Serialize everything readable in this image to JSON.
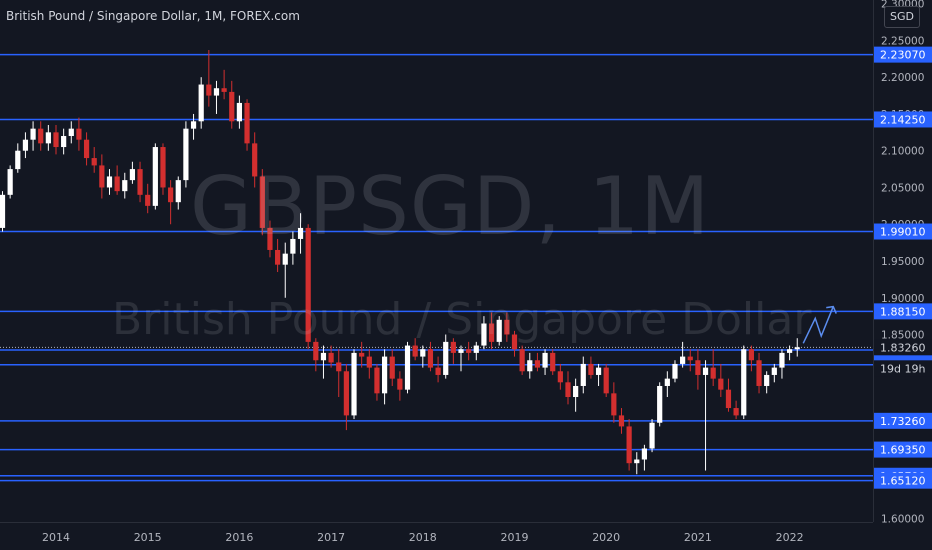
{
  "header": {
    "title": "British Pound / Singapore Dollar, 1M, FOREX.com",
    "currency_button": "SGD"
  },
  "watermark": {
    "symbol": "GBPSGD, 1M",
    "name": "British Pound / Singapore Dollar"
  },
  "colors": {
    "background": "#131722",
    "up_candle": "#ffffff",
    "down_candle": "#d32f2f",
    "level_line": "#2962ff",
    "axis_text": "#b2b5be"
  },
  "chart_data": {
    "type": "candlestick",
    "title": "British Pound / Singapore Dollar, 1M, FOREX.com",
    "ylim": [
      1.595,
      2.305
    ],
    "y_ticks": [
      {
        "label": "2.30000",
        "value": 2.3
      },
      {
        "label": "2.25000",
        "value": 2.25
      },
      {
        "label": "2.20000",
        "value": 2.2
      },
      {
        "label": "2.15000",
        "value": 2.15
      },
      {
        "label": "2.10000",
        "value": 2.1
      },
      {
        "label": "2.05000",
        "value": 2.05
      },
      {
        "label": "2.00000",
        "value": 2.0
      },
      {
        "label": "1.95000",
        "value": 1.95
      },
      {
        "label": "1.90000",
        "value": 1.9
      },
      {
        "label": "1.85000",
        "value": 1.85
      },
      {
        "label": "1.60000",
        "value": 1.6
      }
    ],
    "x_ticks": [
      {
        "label": "2014",
        "value": 2014
      },
      {
        "label": "2015",
        "value": 2015
      },
      {
        "label": "2016",
        "value": 2016
      },
      {
        "label": "2017",
        "value": 2017
      },
      {
        "label": "2018",
        "value": 2018
      },
      {
        "label": "2019",
        "value": 2019
      },
      {
        "label": "2020",
        "value": 2020
      },
      {
        "label": "2021",
        "value": 2021
      },
      {
        "label": "2022",
        "value": 2022
      }
    ],
    "levels": [
      {
        "label": "2.23070",
        "value": 2.2307
      },
      {
        "label": "2.14250",
        "value": 2.1425
      },
      {
        "label": "1.99010",
        "value": 1.9901
      },
      {
        "label": "1.88150",
        "value": 1.8815
      },
      {
        "label": "1.82900",
        "value": 1.829
      },
      {
        "label": "1.80890",
        "value": 1.8089
      },
      {
        "label": "1.73260",
        "value": 1.7326
      },
      {
        "label": "1.69350",
        "value": 1.6935
      },
      {
        "label": "1.65790",
        "value": 1.6579
      },
      {
        "label": "1.65120",
        "value": 1.6512
      }
    ],
    "current_price": {
      "label": "1.83260",
      "value": 1.8326
    },
    "countdown": "19d 19h",
    "candles": [
      {
        "o": 1.905,
        "h": 1.935,
        "l": 1.895,
        "c": 1.925
      },
      {
        "o": 1.925,
        "h": 1.96,
        "l": 1.92,
        "c": 1.955
      },
      {
        "o": 1.955,
        "h": 2.0,
        "l": 1.945,
        "c": 1.99
      },
      {
        "o": 1.99,
        "h": 2.02,
        "l": 1.98,
        "c": 2.01
      },
      {
        "o": 2.01,
        "h": 2.025,
        "l": 1.99,
        "c": 2.02
      },
      {
        "o": 2.02,
        "h": 2.03,
        "l": 1.985,
        "c": 1.995
      },
      {
        "o": 1.995,
        "h": 2.045,
        "l": 1.99,
        "c": 2.04
      },
      {
        "o": 2.04,
        "h": 2.08,
        "l": 2.035,
        "c": 2.075
      },
      {
        "o": 2.075,
        "h": 2.11,
        "l": 2.07,
        "c": 2.1
      },
      {
        "o": 2.1,
        "h": 2.125,
        "l": 2.09,
        "c": 2.115
      },
      {
        "o": 2.115,
        "h": 2.14,
        "l": 2.1,
        "c": 2.13
      },
      {
        "o": 2.13,
        "h": 2.14,
        "l": 2.1,
        "c": 2.11
      },
      {
        "o": 2.11,
        "h": 2.135,
        "l": 2.1,
        "c": 2.125
      },
      {
        "o": 2.125,
        "h": 2.135,
        "l": 2.095,
        "c": 2.105
      },
      {
        "o": 2.105,
        "h": 2.13,
        "l": 2.095,
        "c": 2.12
      },
      {
        "o": 2.12,
        "h": 2.14,
        "l": 2.11,
        "c": 2.13
      },
      {
        "o": 2.13,
        "h": 2.145,
        "l": 2.1,
        "c": 2.115
      },
      {
        "o": 2.115,
        "h": 2.125,
        "l": 2.08,
        "c": 2.09
      },
      {
        "o": 2.09,
        "h": 2.105,
        "l": 2.07,
        "c": 2.08
      },
      {
        "o": 2.08,
        "h": 2.095,
        "l": 2.035,
        "c": 2.05
      },
      {
        "o": 2.05,
        "h": 2.075,
        "l": 2.04,
        "c": 2.065
      },
      {
        "o": 2.065,
        "h": 2.08,
        "l": 2.04,
        "c": 2.045
      },
      {
        "o": 2.045,
        "h": 2.07,
        "l": 2.035,
        "c": 2.06
      },
      {
        "o": 2.06,
        "h": 2.085,
        "l": 2.055,
        "c": 2.075
      },
      {
        "o": 2.075,
        "h": 2.085,
        "l": 2.03,
        "c": 2.04
      },
      {
        "o": 2.04,
        "h": 2.055,
        "l": 2.015,
        "c": 2.025
      },
      {
        "o": 2.025,
        "h": 2.11,
        "l": 2.02,
        "c": 2.105
      },
      {
        "o": 2.105,
        "h": 2.11,
        "l": 2.04,
        "c": 2.05
      },
      {
        "o": 2.05,
        "h": 2.06,
        "l": 2.0,
        "c": 2.03
      },
      {
        "o": 2.03,
        "h": 2.065,
        "l": 2.02,
        "c": 2.06
      },
      {
        "o": 2.06,
        "h": 2.14,
        "l": 2.05,
        "c": 2.13
      },
      {
        "o": 2.13,
        "h": 2.15,
        "l": 2.115,
        "c": 2.14
      },
      {
        "o": 2.14,
        "h": 2.2,
        "l": 2.13,
        "c": 2.19
      },
      {
        "o": 2.19,
        "h": 2.237,
        "l": 2.16,
        "c": 2.175
      },
      {
        "o": 2.175,
        "h": 2.195,
        "l": 2.15,
        "c": 2.185
      },
      {
        "o": 2.185,
        "h": 2.21,
        "l": 2.17,
        "c": 2.18
      },
      {
        "o": 2.18,
        "h": 2.195,
        "l": 2.13,
        "c": 2.14
      },
      {
        "o": 2.14,
        "h": 2.175,
        "l": 2.13,
        "c": 2.165
      },
      {
        "o": 2.165,
        "h": 2.17,
        "l": 2.1,
        "c": 2.11
      },
      {
        "o": 2.11,
        "h": 2.125,
        "l": 2.05,
        "c": 2.065
      },
      {
        "o": 2.065,
        "h": 2.075,
        "l": 1.985,
        "c": 1.995
      },
      {
        "o": 1.995,
        "h": 2.005,
        "l": 1.955,
        "c": 1.965
      },
      {
        "o": 1.965,
        "h": 1.98,
        "l": 1.935,
        "c": 1.945
      },
      {
        "o": 1.945,
        "h": 1.975,
        "l": 1.9,
        "c": 1.96
      },
      {
        "o": 1.96,
        "h": 1.99,
        "l": 1.945,
        "c": 1.98
      },
      {
        "o": 1.98,
        "h": 2.015,
        "l": 1.96,
        "c": 1.995
      },
      {
        "o": 1.995,
        "h": 2.0,
        "l": 1.83,
        "c": 1.84
      },
      {
        "o": 1.84,
        "h": 1.845,
        "l": 1.8,
        "c": 1.815
      },
      {
        "o": 1.815,
        "h": 1.835,
        "l": 1.79,
        "c": 1.825
      },
      {
        "o": 1.825,
        "h": 1.835,
        "l": 1.805,
        "c": 1.812
      },
      {
        "o": 1.812,
        "h": 1.83,
        "l": 1.765,
        "c": 1.8
      },
      {
        "o": 1.8,
        "h": 1.81,
        "l": 1.72,
        "c": 1.74
      },
      {
        "o": 1.74,
        "h": 1.83,
        "l": 1.735,
        "c": 1.825
      },
      {
        "o": 1.825,
        "h": 1.84,
        "l": 1.805,
        "c": 1.82
      },
      {
        "o": 1.82,
        "h": 1.83,
        "l": 1.79,
        "c": 1.805
      },
      {
        "o": 1.805,
        "h": 1.81,
        "l": 1.76,
        "c": 1.77
      },
      {
        "o": 1.77,
        "h": 1.83,
        "l": 1.755,
        "c": 1.82
      },
      {
        "o": 1.82,
        "h": 1.83,
        "l": 1.78,
        "c": 1.79
      },
      {
        "o": 1.79,
        "h": 1.8,
        "l": 1.76,
        "c": 1.775
      },
      {
        "o": 1.775,
        "h": 1.84,
        "l": 1.77,
        "c": 1.835
      },
      {
        "o": 1.835,
        "h": 1.845,
        "l": 1.815,
        "c": 1.82
      },
      {
        "o": 1.82,
        "h": 1.835,
        "l": 1.805,
        "c": 1.83
      },
      {
        "o": 1.83,
        "h": 1.84,
        "l": 1.8,
        "c": 1.805
      },
      {
        "o": 1.805,
        "h": 1.82,
        "l": 1.785,
        "c": 1.795
      },
      {
        "o": 1.795,
        "h": 1.85,
        "l": 1.79,
        "c": 1.84
      },
      {
        "o": 1.84,
        "h": 1.845,
        "l": 1.81,
        "c": 1.825
      },
      {
        "o": 1.825,
        "h": 1.835,
        "l": 1.8,
        "c": 1.83
      },
      {
        "o": 1.83,
        "h": 1.84,
        "l": 1.815,
        "c": 1.825
      },
      {
        "o": 1.825,
        "h": 1.84,
        "l": 1.815,
        "c": 1.835
      },
      {
        "o": 1.835,
        "h": 1.875,
        "l": 1.83,
        "c": 1.865
      },
      {
        "o": 1.865,
        "h": 1.88,
        "l": 1.83,
        "c": 1.84
      },
      {
        "o": 1.84,
        "h": 1.875,
        "l": 1.835,
        "c": 1.87
      },
      {
        "o": 1.87,
        "h": 1.88,
        "l": 1.84,
        "c": 1.85
      },
      {
        "o": 1.85,
        "h": 1.855,
        "l": 1.82,
        "c": 1.83
      },
      {
        "o": 1.83,
        "h": 1.835,
        "l": 1.795,
        "c": 1.8
      },
      {
        "o": 1.8,
        "h": 1.825,
        "l": 1.79,
        "c": 1.815
      },
      {
        "o": 1.815,
        "h": 1.825,
        "l": 1.8,
        "c": 1.805
      },
      {
        "o": 1.805,
        "h": 1.83,
        "l": 1.795,
        "c": 1.825
      },
      {
        "o": 1.825,
        "h": 1.83,
        "l": 1.795,
        "c": 1.8
      },
      {
        "o": 1.8,
        "h": 1.81,
        "l": 1.775,
        "c": 1.785
      },
      {
        "o": 1.785,
        "h": 1.8,
        "l": 1.755,
        "c": 1.765
      },
      {
        "o": 1.765,
        "h": 1.79,
        "l": 1.745,
        "c": 1.78
      },
      {
        "o": 1.78,
        "h": 1.82,
        "l": 1.77,
        "c": 1.81
      },
      {
        "o": 1.81,
        "h": 1.82,
        "l": 1.79,
        "c": 1.795
      },
      {
        "o": 1.795,
        "h": 1.81,
        "l": 1.78,
        "c": 1.805
      },
      {
        "o": 1.805,
        "h": 1.81,
        "l": 1.765,
        "c": 1.77
      },
      {
        "o": 1.77,
        "h": 1.785,
        "l": 1.73,
        "c": 1.74
      },
      {
        "o": 1.74,
        "h": 1.75,
        "l": 1.715,
        "c": 1.725
      },
      {
        "o": 1.725,
        "h": 1.735,
        "l": 1.665,
        "c": 1.675
      },
      {
        "o": 1.675,
        "h": 1.69,
        "l": 1.66,
        "c": 1.68
      },
      {
        "o": 1.68,
        "h": 1.7,
        "l": 1.665,
        "c": 1.695
      },
      {
        "o": 1.695,
        "h": 1.735,
        "l": 1.69,
        "c": 1.73
      },
      {
        "o": 1.73,
        "h": 1.785,
        "l": 1.725,
        "c": 1.78
      },
      {
        "o": 1.78,
        "h": 1.8,
        "l": 1.765,
        "c": 1.79
      },
      {
        "o": 1.79,
        "h": 1.815,
        "l": 1.785,
        "c": 1.81
      },
      {
        "o": 1.81,
        "h": 1.84,
        "l": 1.805,
        "c": 1.82
      },
      {
        "o": 1.82,
        "h": 1.83,
        "l": 1.8,
        "c": 1.815
      },
      {
        "o": 1.815,
        "h": 1.83,
        "l": 1.775,
        "c": 1.795
      },
      {
        "o": 1.795,
        "h": 1.815,
        "l": 1.665,
        "c": 1.805
      },
      {
        "o": 1.805,
        "h": 1.83,
        "l": 1.78,
        "c": 1.79
      },
      {
        "o": 1.79,
        "h": 1.81,
        "l": 1.765,
        "c": 1.775
      },
      {
        "o": 1.775,
        "h": 1.79,
        "l": 1.745,
        "c": 1.75
      },
      {
        "o": 1.75,
        "h": 1.76,
        "l": 1.735,
        "c": 1.74
      },
      {
        "o": 1.74,
        "h": 1.835,
        "l": 1.735,
        "c": 1.83
      },
      {
        "o": 1.83,
        "h": 1.835,
        "l": 1.8,
        "c": 1.815
      },
      {
        "o": 1.815,
        "h": 1.825,
        "l": 1.77,
        "c": 1.78
      },
      {
        "o": 1.78,
        "h": 1.8,
        "l": 1.77,
        "c": 1.795
      },
      {
        "o": 1.795,
        "h": 1.81,
        "l": 1.785,
        "c": 1.805
      },
      {
        "o": 1.805,
        "h": 1.83,
        "l": 1.79,
        "c": 1.825
      },
      {
        "o": 1.825,
        "h": 1.835,
        "l": 1.815,
        "c": 1.83
      },
      {
        "o": 1.83,
        "h": 1.845,
        "l": 1.82,
        "c": 1.8326
      }
    ]
  }
}
